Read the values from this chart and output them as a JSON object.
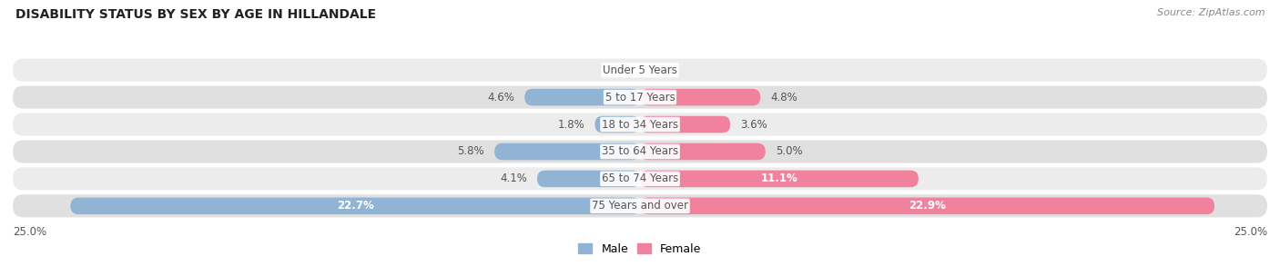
{
  "title": "DISABILITY STATUS BY SEX BY AGE IN HILLANDALE",
  "source": "Source: ZipAtlas.com",
  "categories": [
    "Under 5 Years",
    "5 to 17 Years",
    "18 to 34 Years",
    "35 to 64 Years",
    "65 to 74 Years",
    "75 Years and over"
  ],
  "male_values": [
    0.0,
    4.6,
    1.8,
    5.8,
    4.1,
    22.7
  ],
  "female_values": [
    0.0,
    4.8,
    3.6,
    5.0,
    11.1,
    22.9
  ],
  "max_value": 25.0,
  "male_color": "#92b4d4",
  "female_color": "#f0829e",
  "row_bg_color_odd": "#ececec",
  "row_bg_color_even": "#e0e0e0",
  "label_color": "#555555",
  "title_color": "#222222",
  "axis_label_color": "#555555",
  "figure_bg": "#ffffff",
  "inside_label_threshold": 10.0
}
